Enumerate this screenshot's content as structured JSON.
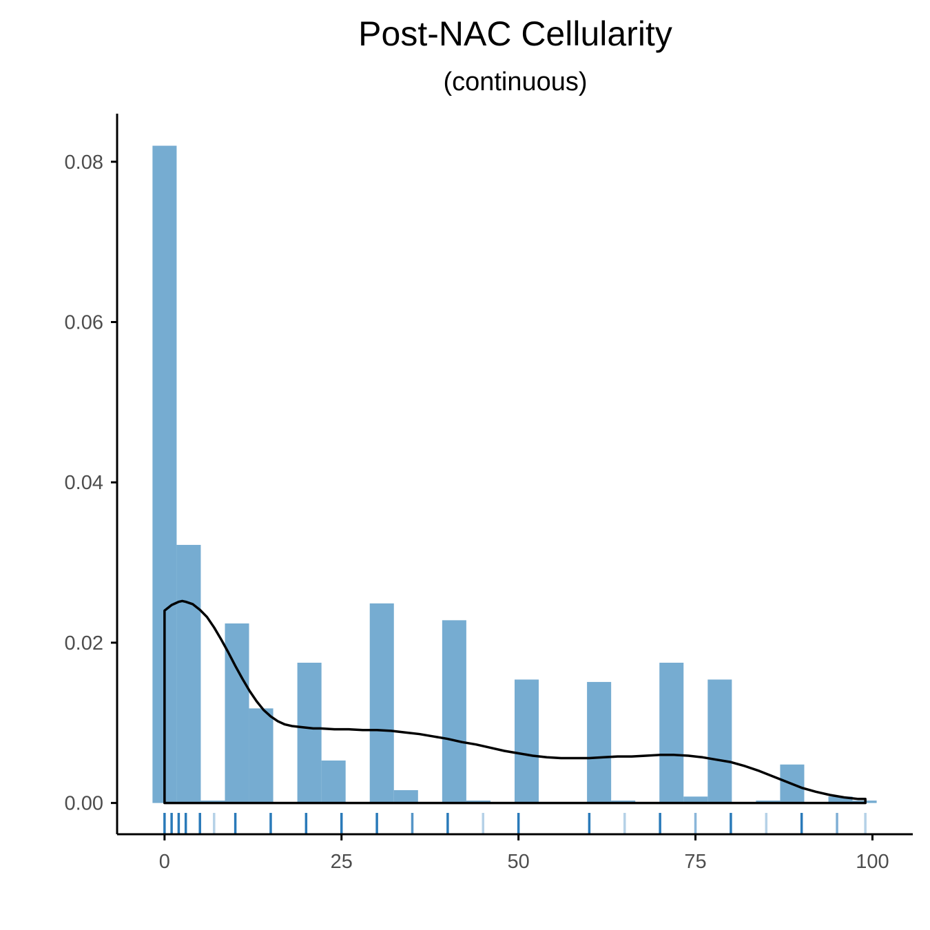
{
  "chart_data": {
    "type": "histogram",
    "title": "Post-NAC Cellularity",
    "subtitle": "(continuous)",
    "xlabel": "",
    "ylabel": "",
    "xlim": [
      -6.7,
      105.7
    ],
    "ylim": [
      -0.0039,
      0.086
    ],
    "x_ticks": [
      0,
      25,
      50,
      75,
      100
    ],
    "x_tick_labels": [
      "0",
      "25",
      "50",
      "75",
      "100"
    ],
    "y_ticks": [
      0,
      0.02,
      0.04,
      0.06,
      0.08
    ],
    "y_tick_labels": [
      "0.00",
      "0.02",
      "0.04",
      "0.06",
      "0.08"
    ],
    "grid": false,
    "bar_color": "#76acd1",
    "density_color": "#000000",
    "rug_color": "#2a7ab9",
    "bin_width": 3.41,
    "bins": [
      {
        "x0": -1.7,
        "x1": 1.71,
        "density": 0.082
      },
      {
        "x0": 1.71,
        "x1": 5.12,
        "density": 0.0322
      },
      {
        "x0": 5.12,
        "x1": 8.53,
        "density": 0.0003
      },
      {
        "x0": 8.53,
        "x1": 11.94,
        "density": 0.0224
      },
      {
        "x0": 11.94,
        "x1": 15.35,
        "density": 0.0118
      },
      {
        "x0": 15.35,
        "x1": 18.76,
        "density": 0.0
      },
      {
        "x0": 18.76,
        "x1": 22.17,
        "density": 0.0175
      },
      {
        "x0": 22.17,
        "x1": 25.58,
        "density": 0.0053
      },
      {
        "x0": 25.58,
        "x1": 28.99,
        "density": 0.0
      },
      {
        "x0": 28.99,
        "x1": 32.4,
        "density": 0.0249
      },
      {
        "x0": 32.4,
        "x1": 35.81,
        "density": 0.0016
      },
      {
        "x0": 35.81,
        "x1": 39.22,
        "density": 0.0
      },
      {
        "x0": 39.22,
        "x1": 42.63,
        "density": 0.0228
      },
      {
        "x0": 42.63,
        "x1": 46.04,
        "density": 0.0003
      },
      {
        "x0": 46.04,
        "x1": 49.45,
        "density": 0.0
      },
      {
        "x0": 49.45,
        "x1": 52.86,
        "density": 0.0154
      },
      {
        "x0": 52.86,
        "x1": 56.27,
        "density": 0.0
      },
      {
        "x0": 56.27,
        "x1": 59.68,
        "density": 0.0
      },
      {
        "x0": 59.68,
        "x1": 63.09,
        "density": 0.0151
      },
      {
        "x0": 63.09,
        "x1": 66.5,
        "density": 0.0003
      },
      {
        "x0": 66.5,
        "x1": 69.91,
        "density": 0.0
      },
      {
        "x0": 69.91,
        "x1": 73.32,
        "density": 0.0175
      },
      {
        "x0": 73.32,
        "x1": 76.73,
        "density": 0.0008
      },
      {
        "x0": 76.73,
        "x1": 80.14,
        "density": 0.0154
      },
      {
        "x0": 80.14,
        "x1": 83.55,
        "density": 0.0
      },
      {
        "x0": 83.55,
        "x1": 86.96,
        "density": 0.0003
      },
      {
        "x0": 86.96,
        "x1": 90.37,
        "density": 0.0048
      },
      {
        "x0": 90.37,
        "x1": 93.78,
        "density": 0.0
      },
      {
        "x0": 93.78,
        "x1": 97.19,
        "density": 0.0008
      },
      {
        "x0": 97.19,
        "x1": 100.6,
        "density": 0.0003
      }
    ],
    "density_curve": {
      "x": [
        0,
        1,
        2,
        2.5,
        3,
        4,
        5,
        6,
        7,
        8,
        9,
        10,
        11,
        12,
        13,
        14,
        15,
        16,
        17,
        18,
        19,
        20,
        21,
        22,
        24,
        26,
        28,
        30,
        32,
        34,
        36,
        38,
        40,
        42,
        44,
        46,
        48,
        50,
        52,
        54,
        56,
        58,
        60,
        62,
        64,
        66,
        68,
        70,
        72,
        74,
        76,
        78,
        80,
        82,
        84,
        86,
        88,
        90,
        92,
        94,
        96,
        98,
        99
      ],
      "y": [
        0.024,
        0.0247,
        0.0251,
        0.0252,
        0.0251,
        0.0248,
        0.0241,
        0.0232,
        0.0219,
        0.0204,
        0.0188,
        0.0171,
        0.0155,
        0.014,
        0.0127,
        0.0116,
        0.0108,
        0.0102,
        0.0098,
        0.0096,
        0.0095,
        0.0094,
        0.0093,
        0.0093,
        0.0092,
        0.0092,
        0.0091,
        0.0091,
        0.009,
        0.0088,
        0.0086,
        0.0083,
        0.008,
        0.0076,
        0.0073,
        0.0069,
        0.0065,
        0.0062,
        0.0059,
        0.0057,
        0.0056,
        0.0056,
        0.0056,
        0.0057,
        0.0058,
        0.0058,
        0.0059,
        0.006,
        0.006,
        0.0059,
        0.0057,
        0.0054,
        0.0051,
        0.0046,
        0.004,
        0.0033,
        0.0026,
        0.0019,
        0.0014,
        0.001,
        0.0007,
        0.0005,
        0.0005
      ]
    },
    "rug": [
      {
        "x": 0,
        "opacity": 1.0
      },
      {
        "x": 1,
        "opacity": 1.0
      },
      {
        "x": 2,
        "opacity": 1.0
      },
      {
        "x": 3,
        "opacity": 1.0
      },
      {
        "x": 5,
        "opacity": 1.0
      },
      {
        "x": 7,
        "opacity": 0.35
      },
      {
        "x": 10,
        "opacity": 1.0
      },
      {
        "x": 15,
        "opacity": 1.0
      },
      {
        "x": 20,
        "opacity": 1.0
      },
      {
        "x": 25,
        "opacity": 1.0
      },
      {
        "x": 30,
        "opacity": 1.0
      },
      {
        "x": 35,
        "opacity": 0.8
      },
      {
        "x": 40,
        "opacity": 1.0
      },
      {
        "x": 45,
        "opacity": 0.35
      },
      {
        "x": 50,
        "opacity": 1.0
      },
      {
        "x": 60,
        "opacity": 1.0
      },
      {
        "x": 65,
        "opacity": 0.35
      },
      {
        "x": 70,
        "opacity": 1.0
      },
      {
        "x": 75,
        "opacity": 0.55
      },
      {
        "x": 80,
        "opacity": 1.0
      },
      {
        "x": 85,
        "opacity": 0.35
      },
      {
        "x": 90,
        "opacity": 1.0
      },
      {
        "x": 95,
        "opacity": 0.6
      },
      {
        "x": 99,
        "opacity": 0.35
      }
    ]
  }
}
